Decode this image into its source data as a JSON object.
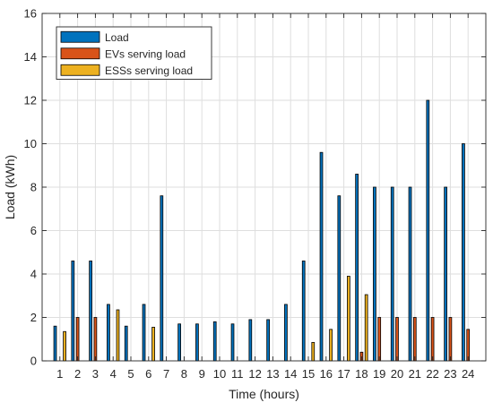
{
  "chart_data": {
    "type": "bar",
    "title": "",
    "xlabel": "Time (hours)",
    "ylabel": "Load (kWh)",
    "ylim": [
      0,
      16
    ],
    "yticks": [
      0,
      2,
      4,
      6,
      8,
      10,
      12,
      14,
      16
    ],
    "grid": true,
    "legend_position": "top-left",
    "categories": [
      "1",
      "2",
      "3",
      "4",
      "5",
      "6",
      "7",
      "8",
      "9",
      "10",
      "11",
      "12",
      "13",
      "14",
      "15",
      "16",
      "17",
      "18",
      "19",
      "20",
      "21",
      "22",
      "23",
      "24"
    ],
    "series": [
      {
        "name": "Load",
        "color": "#0072BD",
        "values": [
          1.6,
          4.6,
          4.6,
          2.6,
          1.6,
          2.6,
          7.6,
          1.7,
          1.7,
          1.8,
          1.7,
          1.9,
          1.9,
          2.6,
          4.6,
          9.6,
          7.6,
          8.6,
          8.0,
          8.0,
          8.0,
          12.0,
          8.0,
          10.0
        ]
      },
      {
        "name": "EVs serving load",
        "color": "#D95319",
        "values": [
          0,
          2.0,
          2.0,
          0,
          0,
          0,
          0,
          0,
          0,
          0,
          0,
          0,
          0,
          0,
          0,
          0,
          0,
          0.4,
          2.0,
          2.0,
          2.0,
          2.0,
          2.0,
          1.45
        ]
      },
      {
        "name": "ESSs serving load",
        "color": "#EDB120",
        "values": [
          1.35,
          0,
          0,
          2.35,
          0,
          1.55,
          0,
          0,
          0,
          0,
          0,
          0,
          0,
          0,
          0.85,
          1.45,
          3.9,
          3.05,
          0,
          0,
          0,
          0,
          0,
          0
        ]
      }
    ]
  }
}
